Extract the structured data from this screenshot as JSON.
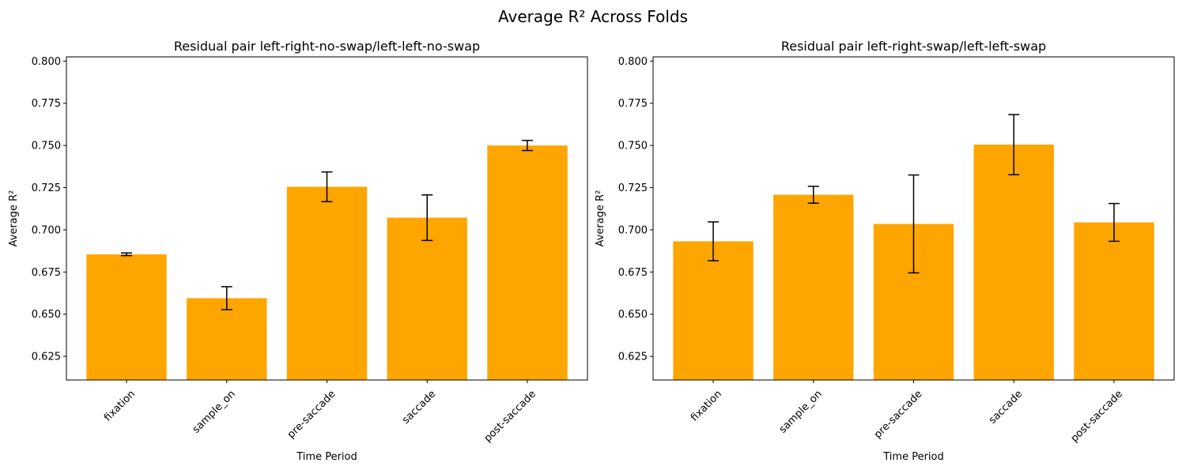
{
  "figure": {
    "suptitle": "Average R² Across Folds"
  },
  "chart_data": [
    {
      "type": "bar",
      "title": "Residual pair left-right-no-swap/left-left-no-swap",
      "xlabel": "Time Period",
      "ylabel": "Average R²",
      "categories": [
        "fixation",
        "sample_on",
        "pre-saccade",
        "saccade",
        "post-saccade"
      ],
      "values": [
        0.6855,
        0.6595,
        0.7255,
        0.7072,
        0.75
      ],
      "errors": [
        0.0008,
        0.0068,
        0.0088,
        0.0135,
        0.003
      ],
      "ylim": [
        0.611,
        0.8025
      ],
      "yticks": [
        "0.625",
        "0.650",
        "0.675",
        "0.700",
        "0.725",
        "0.750",
        "0.775",
        "0.800"
      ],
      "bar_color": "#FFA500",
      "error_color": "#000000",
      "grid": false
    },
    {
      "type": "bar",
      "title": "Residual pair left-right-swap/left-left-swap",
      "xlabel": "Time Period",
      "ylabel": "Average R²",
      "categories": [
        "fixation",
        "sample_on",
        "pre-saccade",
        "saccade",
        "post-saccade"
      ],
      "values": [
        0.6932,
        0.7208,
        0.7035,
        0.7505,
        0.7044
      ],
      "errors": [
        0.0115,
        0.005,
        0.029,
        0.0178,
        0.0112
      ],
      "ylim": [
        0.611,
        0.8025
      ],
      "yticks": [
        "0.625",
        "0.650",
        "0.675",
        "0.700",
        "0.725",
        "0.750",
        "0.775",
        "0.800"
      ],
      "bar_color": "#FFA500",
      "error_color": "#000000",
      "grid": false
    }
  ]
}
